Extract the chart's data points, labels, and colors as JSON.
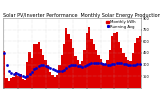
{
  "title": "Solar PV/Inverter Performance  Monthly Solar Energy Production Running Average",
  "title_fontsize": 3.5,
  "bar_color": "#dd0000",
  "avg_color": "#0000cc",
  "background_color": "#ffffff",
  "grid_color": "#bbbbbb",
  "ylim": [
    0,
    900
  ],
  "yticks": [
    150,
    300,
    450,
    600,
    750,
    900
  ],
  "ytick_labels": [
    "150",
    "300",
    "450",
    "600",
    "750",
    "900"
  ],
  "bar_values": [
    480,
    130,
    95,
    130,
    140,
    210,
    160,
    180,
    115,
    105,
    330,
    460,
    390,
    560,
    570,
    590,
    500,
    430,
    360,
    290,
    210,
    165,
    145,
    165,
    290,
    430,
    560,
    770,
    690,
    630,
    510,
    410,
    355,
    305,
    345,
    490,
    710,
    790,
    630,
    570,
    490,
    425,
    375,
    325,
    305,
    355,
    495,
    665,
    705,
    725,
    595,
    515,
    445,
    395,
    365,
    345,
    445,
    575,
    645,
    665
  ],
  "running_avg": [
    450,
    290,
    225,
    198,
    185,
    188,
    176,
    171,
    150,
    136,
    153,
    183,
    206,
    238,
    260,
    283,
    290,
    293,
    285,
    271,
    256,
    241,
    226,
    215,
    215,
    222,
    236,
    262,
    280,
    291,
    293,
    290,
    285,
    278,
    275,
    278,
    291,
    308,
    318,
    325,
    325,
    323,
    318,
    312,
    305,
    301,
    301,
    306,
    313,
    321,
    321,
    318,
    313,
    307,
    302,
    296,
    296,
    300,
    306,
    312
  ],
  "num_bars": 60,
  "tick_fontsize": 2.5,
  "legend_fontsize": 2.8
}
